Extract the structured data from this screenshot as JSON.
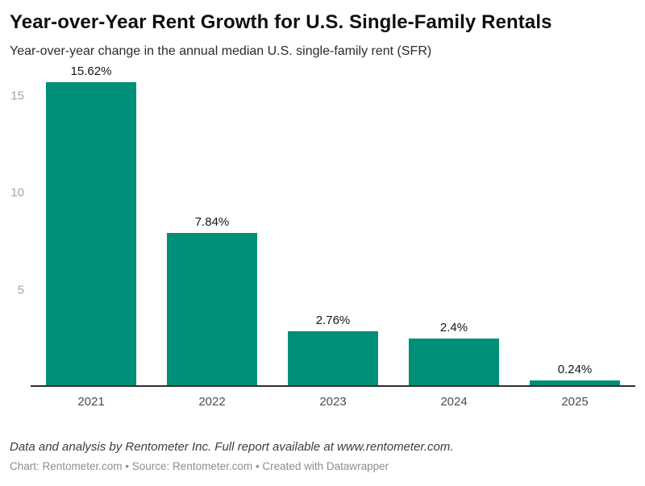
{
  "header": {
    "title": "Year-over-Year Rent Growth for U.S. Single-Family Rentals",
    "subtitle": "Year-over-year change in the annual median U.S. single-family rent (SFR)"
  },
  "chart_data": {
    "type": "bar",
    "title": "Year-over-Year Rent Growth for U.S. Single-Family Rentals",
    "subtitle": "Year-over-year change in the annual median U.S. single-family rent (SFR)",
    "categories": [
      "2021",
      "2022",
      "2023",
      "2024",
      "2025"
    ],
    "values": [
      15.62,
      7.84,
      2.76,
      2.4,
      0.24
    ],
    "value_labels": [
      "15.62%",
      "7.84%",
      "2.76%",
      "2.4%",
      "0.24%"
    ],
    "xlabel": "",
    "ylabel": "",
    "ylim": [
      0,
      16.75
    ],
    "yticks": [
      5,
      10,
      15
    ],
    "grid": false,
    "legend": "none",
    "bar_color": "#008f78"
  },
  "colors": {
    "bar": "#008f78",
    "axis_baseline": "#2e2e2e",
    "y_tick_text": "#a3a3a3",
    "x_label_text": "#4c4c4c",
    "value_label_text": "#161616",
    "background": "#ffffff"
  },
  "footer": {
    "note": "Data and analysis by Rentometer Inc. Full report available at www.rentometer.com.",
    "byline": "Chart: Rentometer.com • Source: Rentometer.com • Created with Datawrapper"
  }
}
